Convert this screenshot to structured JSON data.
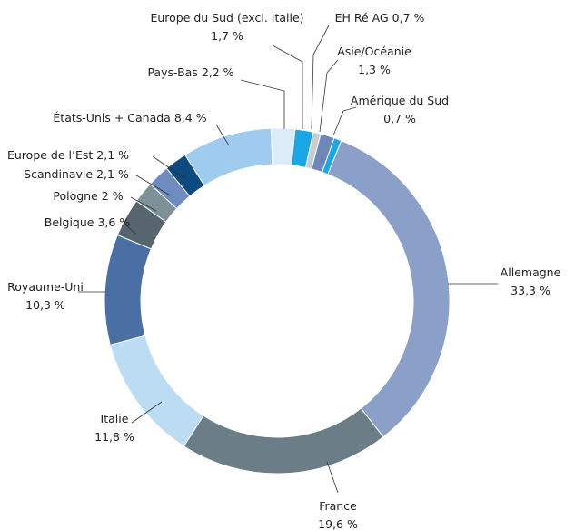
{
  "chart_data": {
    "type": "donut",
    "categories": [
      "Europe du Sud (excl. Italie)",
      "EH Ré AG",
      "Asie/Océanie",
      "Amérique du Sud",
      "Allemagne",
      "France",
      "Italie",
      "Royaume-Uni",
      "Belgique",
      "Pologne",
      "Scandinavie",
      "Europe de l’Est",
      "États-Unis + Canada",
      "Pays-Bas"
    ],
    "values": [
      1.7,
      0.7,
      1.3,
      0.7,
      33.3,
      19.6,
      11.8,
      10.3,
      3.6,
      2,
      2.1,
      2.1,
      8.4,
      2.2
    ],
    "value_labels": [
      "1,7 %",
      "0,7 %",
      "1,3 %",
      "0,7 %",
      "33,3 %",
      "19,6 %",
      "11,8 %",
      "10,3 %",
      "3,6 %",
      "2 %",
      "2,1 %",
      "2,1 %",
      "8,4 %",
      "2,2 %"
    ],
    "colors": [
      "#1aa7e6",
      "#c8ccd0",
      "#6d87b8",
      "#1aa7e6",
      "#8aa0c8",
      "#6b7d87",
      "#bcdcf3",
      "#4a6fa5",
      "#57666e",
      "#7f9198",
      "#6f8cc0",
      "#0d4a80",
      "#9ecbee",
      "#dcebf8"
    ]
  }
}
